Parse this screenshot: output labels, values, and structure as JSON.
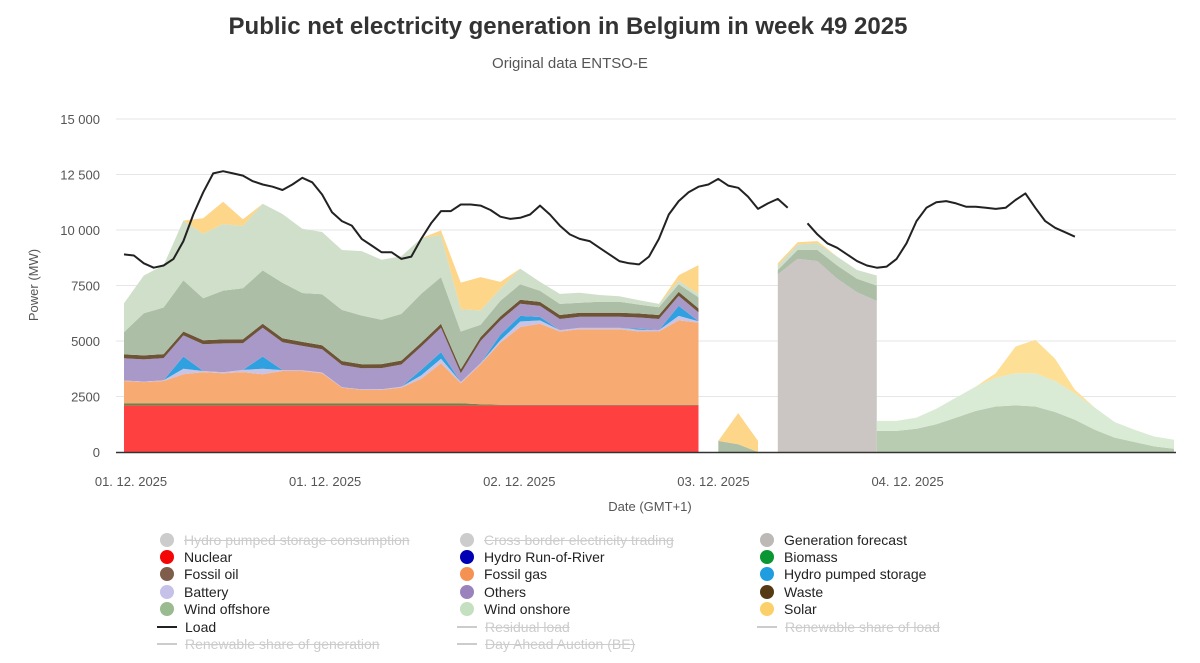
{
  "header": {
    "title": "Public net electricity generation in Belgium in week 49 2025",
    "subtitle": "Original data ENTSO-E"
  },
  "chart_data": {
    "type": "area",
    "stacked": true,
    "title": "Public net electricity generation in Belgium in week 49 2025",
    "subtitle": "Original data ENTSO-E",
    "xlabel": "Date (GMT+1)",
    "ylabel": "Power (MW)",
    "ylim": [
      0,
      15000
    ],
    "yticks": [
      0,
      2500,
      5000,
      7500,
      10000,
      12500,
      15000
    ],
    "ytick_labels": [
      "0",
      "2500",
      "5000",
      "7500",
      "10 000",
      "12 500",
      "15 000"
    ],
    "xticks": [
      0,
      19.6,
      39.2,
      58.8,
      78.4
    ],
    "xtick_labels": [
      "01. 12. 2025",
      "01. 12. 2025",
      "02. 12. 2025",
      "03. 12. 2025",
      "04. 12. 2025"
    ],
    "x_unit": "hours from start (2-hour samples)",
    "grid": true,
    "legend_position": "bottom",
    "x": [
      0,
      2,
      4,
      6,
      8,
      10,
      12,
      14,
      16,
      18,
      20,
      22,
      24,
      26,
      28,
      30,
      32,
      34,
      36,
      38,
      40,
      42,
      44,
      46,
      48,
      50,
      52,
      54,
      56,
      58,
      60
    ],
    "segments": [
      {
        "name": "actual",
        "x": [
          0,
          2,
          4,
          6,
          8,
          10,
          12,
          14,
          16,
          18,
          20,
          22,
          24,
          26,
          28,
          30,
          32,
          34,
          36,
          38,
          40,
          42,
          44,
          46,
          48,
          50,
          52,
          54,
          56,
          58
        ],
        "series": [
          {
            "name": "Nuclear",
            "color": "#ff4040",
            "values": [
              2100,
              2100,
              2100,
              2100,
              2100,
              2100,
              2100,
              2100,
              2100,
              2100,
              2100,
              2100,
              2100,
              2100,
              2100,
              2100,
              2100,
              2100,
              2100,
              2100,
              2100,
              2100,
              2100,
              2100,
              2100,
              2100,
              2100,
              2100,
              2100,
              2100
            ]
          },
          {
            "name": "Biomass",
            "color": "#5f8c4d",
            "values": [
              100,
              100,
              100,
              100,
              100,
              100,
              100,
              100,
              100,
              100,
              100,
              100,
              100,
              100,
              100,
              100,
              100,
              100,
              50,
              30,
              30,
              30,
              30,
              30,
              30,
              30,
              30,
              30,
              30,
              30
            ]
          },
          {
            "name": "Fossil gas",
            "color": "#f8aa73",
            "values": [
              1000,
              950,
              1000,
              1300,
              1400,
              1350,
              1400,
              1300,
              1450,
              1450,
              1350,
              700,
              600,
              600,
              700,
              1100,
              1800,
              900,
              1800,
              2800,
              3500,
              3650,
              3300,
              3400,
              3400,
              3400,
              3300,
              3300,
              3800,
              3700
            ]
          },
          {
            "name": "Battery",
            "color": "#c9c3e6",
            "values": [
              20,
              20,
              30,
              250,
              50,
              40,
              100,
              250,
              40,
              30,
              30,
              20,
              20,
              30,
              40,
              150,
              200,
              50,
              50,
              100,
              250,
              150,
              60,
              60,
              60,
              60,
              80,
              60,
              200,
              60
            ]
          },
          {
            "name": "Hydro pumped storage",
            "color": "#2fa0e0",
            "values": [
              0,
              0,
              0,
              550,
              0,
              0,
              0,
              550,
              0,
              0,
              0,
              0,
              0,
              0,
              0,
              250,
              300,
              0,
              0,
              250,
              250,
              150,
              0,
              0,
              0,
              0,
              50,
              0,
              450,
              0
            ]
          },
          {
            "name": "Others",
            "color": "#a999c8",
            "values": [
              1000,
              1000,
              1000,
              950,
              1200,
              1300,
              1200,
              1300,
              1250,
              1100,
              1050,
              1000,
              950,
              950,
              1000,
              1050,
              1100,
              400,
              1000,
              650,
              550,
              500,
              500,
              500,
              500,
              500,
              500,
              500,
              450,
              400
            ]
          },
          {
            "name": "Waste",
            "color": "#6e5437",
            "values": [
              180,
              180,
              180,
              180,
              180,
              180,
              180,
              180,
              180,
              180,
              180,
              180,
              180,
              180,
              180,
              180,
              180,
              180,
              180,
              180,
              180,
              180,
              180,
              180,
              180,
              180,
              180,
              180,
              180,
              180
            ]
          },
          {
            "name": "Wind offshore",
            "color": "#acbfa6",
            "values": [
              1000,
              1900,
              2100,
              2300,
              1900,
              2200,
              2300,
              2400,
              2500,
              2200,
              2300,
              2300,
              2200,
              2000,
              2100,
              2200,
              2100,
              1700,
              550,
              700,
              700,
              500,
              500,
              450,
              500,
              500,
              400,
              350,
              350,
              500
            ]
          },
          {
            "name": "Wind onshore",
            "color": "#cfdfc9",
            "values": [
              1300,
              1700,
              1900,
              2700,
              2900,
              3000,
              2800,
              3000,
              3100,
              2900,
              2800,
              2700,
              2900,
              2700,
              2600,
              2500,
              1900,
              1000,
              650,
              550,
              700,
              400,
              450,
              450,
              300,
              250,
              200,
              150,
              150,
              150
            ]
          },
          {
            "name": "Solar",
            "color": "#fdd68a",
            "values": [
              0,
              0,
              0,
              0,
              700,
              1000,
              300,
              0,
              0,
              0,
              0,
              0,
              0,
              0,
              0,
              0,
              200,
              1200,
              1500,
              300,
              0,
              0,
              0,
              0,
              0,
              0,
              0,
              0,
              250,
              1300
            ]
          }
        ]
      },
      {
        "name": "partial",
        "x": [
          60,
          62,
          64
        ],
        "series": [
          {
            "name": "Wind offshore",
            "color": "#acbfa6",
            "values": [
              500,
              350,
              0
            ]
          },
          {
            "name": "Solar",
            "color": "#fdd68a",
            "values": [
              0,
              1400,
              500
            ]
          }
        ]
      },
      {
        "name": "forecast",
        "x": [
          66,
          68,
          70,
          72,
          74,
          76
        ],
        "series": [
          {
            "name": "Generation forecast",
            "color": "#cbc6c3",
            "values": [
              8000,
              8700,
              8600,
              7800,
              7200,
              6800
            ]
          },
          {
            "name": "Wind offshore",
            "color": "#acbfa6",
            "values": [
              200,
              400,
              500,
              600,
              600,
              700
            ]
          },
          {
            "name": "Wind onshore",
            "color": "#cfdfc9",
            "values": [
              200,
              250,
              300,
              400,
              400,
              450
            ]
          },
          {
            "name": "Solar",
            "color": "#fdd68a",
            "values": [
              100,
              100,
              100,
              0,
              0,
              0
            ]
          }
        ]
      },
      {
        "name": "wind-solar-forecast",
        "x": [
          76,
          78,
          80,
          82,
          84,
          86,
          88,
          90,
          92,
          94,
          96,
          98,
          100,
          102,
          104,
          106
        ],
        "series": [
          {
            "name": "Wind offshore",
            "color": "#b8ccb1",
            "values": [
              950,
              950,
              1050,
              1250,
              1550,
              1850,
              2050,
              2100,
              2050,
              1800,
              1450,
              1000,
              650,
              450,
              250,
              150
            ]
          },
          {
            "name": "Wind onshore",
            "color": "#d9ebd4",
            "values": [
              450,
              450,
              500,
              700,
              900,
              1100,
              1300,
              1450,
              1500,
              1400,
              1200,
              1000,
              700,
              550,
              450,
              400
            ]
          },
          {
            "name": "Solar",
            "color": "#fddf96",
            "values": [
              0,
              0,
              0,
              0,
              0,
              0,
              200,
              1200,
              1500,
              1000,
              150,
              0,
              0,
              0,
              0,
              0
            ]
          }
        ]
      }
    ],
    "load": {
      "name": "Load",
      "color": "#222222",
      "x": [
        0,
        1,
        2,
        3,
        4,
        5,
        6,
        7,
        8,
        9,
        10,
        11,
        12,
        13,
        14,
        15,
        16,
        17,
        18,
        19,
        20,
        21,
        22,
        23,
        24,
        25,
        26,
        27,
        28,
        29,
        30,
        31,
        32,
        33,
        34,
        35,
        36,
        37,
        38,
        39,
        40,
        41,
        42,
        43,
        44,
        45,
        46,
        47,
        48,
        49,
        50,
        51,
        52,
        53,
        54,
        55,
        56,
        57,
        58,
        59,
        60,
        61,
        62,
        63,
        64,
        65,
        66,
        67,
        68,
        69,
        70,
        71,
        72,
        73,
        74,
        75,
        76,
        77,
        78,
        79,
        80,
        81,
        82,
        83,
        84,
        85,
        86,
        87,
        88,
        89,
        90,
        91,
        92,
        93,
        94,
        95,
        96,
        97,
        98,
        99,
        100,
        101,
        102,
        103,
        104,
        105,
        106
      ],
      "values": [
        8900,
        8850,
        8500,
        8300,
        8400,
        8700,
        9500,
        10700,
        11700,
        12550,
        12650,
        12550,
        12450,
        12200,
        12050,
        11950,
        11800,
        12050,
        12350,
        12150,
        11600,
        10800,
        10400,
        10200,
        9600,
        9300,
        9000,
        9000,
        8700,
        8800,
        9600,
        10300,
        10850,
        10850,
        11150,
        11150,
        11100,
        10900,
        10600,
        10500,
        10550,
        10700,
        11100,
        10700,
        10200,
        9800,
        9600,
        9500,
        9200,
        8900,
        8600,
        8500,
        8450,
        8800,
        9600,
        10700,
        11300,
        11700,
        11950,
        12050,
        12300,
        12000,
        11900,
        11500,
        10950,
        11200,
        11400,
        11000,
        null,
        10300,
        9800,
        9400,
        9200,
        8900,
        8600,
        8400,
        8300,
        8350,
        8700,
        9400,
        10400,
        11000,
        11250,
        11300,
        11200,
        11050,
        11050,
        11000,
        10950,
        11000,
        11350,
        11650,
        11000,
        10400,
        10100,
        9900,
        9700,
        null,
        null,
        null,
        null,
        null,
        null,
        null,
        null,
        null,
        null
      ]
    },
    "legend": [
      {
        "label": "Hydro pumped storage consumption",
        "color": "#cccccc",
        "kind": "dot",
        "visible": false
      },
      {
        "label": "Cross border electricity trading",
        "color": "#cccccc",
        "kind": "dot",
        "visible": false
      },
      {
        "label": "Generation forecast",
        "color": "#bdb9b6",
        "kind": "dot",
        "visible": true
      },
      {
        "label": "Nuclear",
        "color": "#f50606",
        "kind": "dot",
        "visible": true
      },
      {
        "label": "Hydro Run-of-River",
        "color": "#0000b4",
        "kind": "dot",
        "visible": true
      },
      {
        "label": "Biomass",
        "color": "#0a9632",
        "kind": "dot",
        "visible": true
      },
      {
        "label": "Fossil oil",
        "color": "#7e5e4b",
        "kind": "dot",
        "visible": true
      },
      {
        "label": "Fossil gas",
        "color": "#f59153",
        "kind": "dot",
        "visible": true
      },
      {
        "label": "Hydro pumped storage",
        "color": "#1f9de0",
        "kind": "dot",
        "visible": true
      },
      {
        "label": "Battery",
        "color": "#c5c1e8",
        "kind": "dot",
        "visible": true
      },
      {
        "label": "Others",
        "color": "#9a83bd",
        "kind": "dot",
        "visible": true
      },
      {
        "label": "Waste",
        "color": "#553a14",
        "kind": "dot",
        "visible": true
      },
      {
        "label": "Wind offshore",
        "color": "#9aba90",
        "kind": "dot",
        "visible": true
      },
      {
        "label": "Wind onshore",
        "color": "#c4e0c0",
        "kind": "dot",
        "visible": true
      },
      {
        "label": "Solar",
        "color": "#fbd06a",
        "kind": "dot",
        "visible": true
      },
      {
        "label": "Load",
        "color": "#222222",
        "kind": "line",
        "visible": true
      },
      {
        "label": "Residual load",
        "color": "#cccccc",
        "kind": "line",
        "visible": false
      },
      {
        "label": "Renewable share of load",
        "color": "#cccccc",
        "kind": "line",
        "visible": false
      },
      {
        "label": "Renewable share of generation",
        "color": "#cccccc",
        "kind": "line",
        "visible": false
      },
      {
        "label": "Day Ahead Auction (BE)",
        "color": "#cccccc",
        "kind": "line",
        "visible": false
      }
    ]
  }
}
